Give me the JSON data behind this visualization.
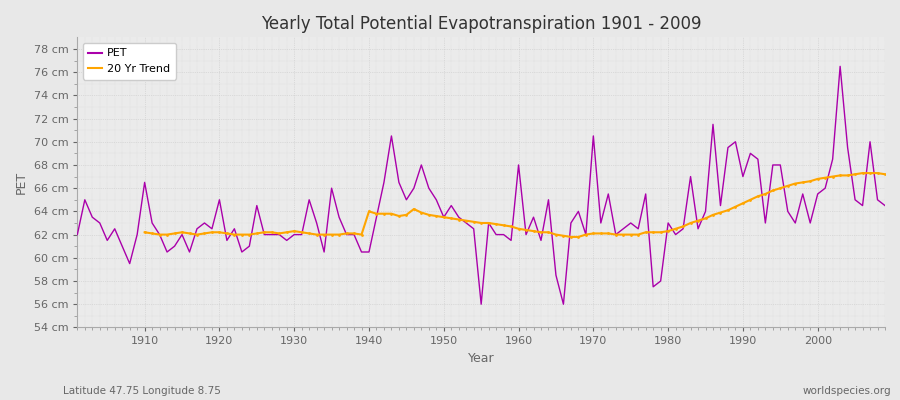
{
  "title": "Yearly Total Potential Evapotranspiration 1901 - 2009",
  "xlabel": "Year",
  "ylabel": "PET",
  "subtitle": "Latitude 47.75 Longitude 8.75",
  "watermark": "worldspecies.org",
  "ylim": [
    54,
    79
  ],
  "yticks": [
    54,
    56,
    58,
    60,
    62,
    64,
    66,
    68,
    70,
    72,
    74,
    76,
    78
  ],
  "pet_color": "#AA00AA",
  "trend_color": "#FFA500",
  "bg_color": "#E8E8E8",
  "plot_bg_color": "#EBEBEB",
  "grid_color": "#CCCCCC",
  "years": [
    1901,
    1902,
    1903,
    1904,
    1905,
    1906,
    1907,
    1908,
    1909,
    1910,
    1911,
    1912,
    1913,
    1914,
    1915,
    1916,
    1917,
    1918,
    1919,
    1920,
    1921,
    1922,
    1923,
    1924,
    1925,
    1926,
    1927,
    1928,
    1929,
    1930,
    1931,
    1932,
    1933,
    1934,
    1935,
    1936,
    1937,
    1938,
    1939,
    1940,
    1941,
    1942,
    1943,
    1944,
    1945,
    1946,
    1947,
    1948,
    1949,
    1950,
    1951,
    1952,
    1953,
    1954,
    1955,
    1956,
    1957,
    1958,
    1959,
    1960,
    1961,
    1962,
    1963,
    1964,
    1965,
    1966,
    1967,
    1968,
    1969,
    1970,
    1971,
    1972,
    1973,
    1974,
    1975,
    1976,
    1977,
    1978,
    1979,
    1980,
    1981,
    1982,
    1983,
    1984,
    1985,
    1986,
    1987,
    1988,
    1989,
    1990,
    1991,
    1992,
    1993,
    1994,
    1995,
    1996,
    1997,
    1998,
    1999,
    2000,
    2001,
    2002,
    2003,
    2004,
    2005,
    2006,
    2007,
    2008,
    2009
  ],
  "pet_values": [
    62.0,
    65.0,
    63.5,
    63.0,
    61.5,
    62.5,
    61.0,
    59.5,
    62.0,
    66.5,
    63.0,
    62.0,
    60.5,
    61.0,
    62.0,
    60.5,
    62.5,
    63.0,
    62.5,
    65.0,
    61.5,
    62.5,
    60.5,
    61.0,
    64.5,
    62.0,
    62.0,
    62.0,
    61.5,
    62.0,
    62.0,
    65.0,
    63.0,
    60.5,
    66.0,
    63.5,
    62.0,
    62.0,
    60.5,
    60.5,
    63.5,
    66.5,
    70.5,
    66.5,
    65.0,
    66.0,
    68.0,
    66.0,
    65.0,
    63.5,
    64.5,
    63.5,
    63.0,
    62.5,
    56.0,
    63.0,
    62.0,
    62.0,
    61.5,
    68.0,
    62.0,
    63.5,
    61.5,
    65.0,
    58.5,
    56.0,
    63.0,
    64.0,
    62.0,
    70.5,
    63.0,
    65.5,
    62.0,
    62.5,
    63.0,
    62.5,
    65.5,
    57.5,
    58.0,
    63.0,
    62.0,
    62.5,
    67.0,
    62.5,
    64.0,
    71.5,
    64.5,
    69.5,
    70.0,
    67.0,
    69.0,
    68.5,
    63.0,
    68.0,
    68.0,
    64.0,
    63.0,
    65.5,
    63.0,
    65.5,
    66.0,
    68.5,
    76.5,
    69.5,
    65.0,
    64.5,
    70.0,
    65.0,
    64.5
  ],
  "trend_years": [
    1910,
    1911,
    1912,
    1913,
    1914,
    1915,
    1916,
    1917,
    1918,
    1919,
    1920,
    1921,
    1922,
    1923,
    1924,
    1925,
    1926,
    1927,
    1928,
    1929,
    1930,
    1931,
    1932,
    1933,
    1934,
    1935,
    1936,
    1937,
    1938,
    1939,
    1940,
    1941,
    1942,
    1943,
    1944,
    1945,
    1946,
    1947,
    1948,
    1949,
    1950,
    1951,
    1952,
    1953,
    1954,
    1955,
    1956,
    1957,
    1958,
    1959,
    1960,
    1961,
    1962,
    1963,
    1964,
    1965,
    1966,
    1967,
    1968,
    1969,
    1970,
    1971,
    1972,
    1973,
    1974,
    1975,
    1976,
    1977,
    1978,
    1979,
    1980,
    1981,
    1982,
    1983,
    1984,
    1985,
    1986,
    1987,
    1988,
    1989,
    1990,
    1991,
    1992,
    1993,
    1994,
    1995,
    1996,
    1997,
    1998,
    1999,
    2000,
    2001,
    2002,
    2003,
    2004,
    2005,
    2006,
    2007,
    2008,
    2009
  ],
  "trend_values": [
    62.2,
    62.1,
    62.0,
    62.0,
    62.1,
    62.2,
    62.1,
    62.0,
    62.1,
    62.2,
    62.2,
    62.1,
    62.0,
    62.0,
    62.0,
    62.1,
    62.2,
    62.2,
    62.1,
    62.2,
    62.3,
    62.2,
    62.1,
    62.0,
    62.0,
    62.0,
    62.0,
    62.1,
    62.1,
    62.0,
    64.0,
    63.8,
    63.8,
    63.8,
    63.6,
    63.7,
    64.2,
    63.9,
    63.7,
    63.6,
    63.5,
    63.4,
    63.3,
    63.2,
    63.1,
    63.0,
    63.0,
    62.9,
    62.8,
    62.7,
    62.5,
    62.4,
    62.3,
    62.2,
    62.2,
    62.0,
    61.9,
    61.8,
    61.8,
    62.0,
    62.1,
    62.1,
    62.1,
    62.0,
    62.0,
    62.0,
    62.0,
    62.2,
    62.2,
    62.2,
    62.3,
    62.5,
    62.7,
    63.0,
    63.2,
    63.4,
    63.7,
    63.9,
    64.1,
    64.4,
    64.7,
    65.0,
    65.3,
    65.5,
    65.8,
    66.0,
    66.2,
    66.4,
    66.5,
    66.6,
    66.8,
    66.9,
    67.0,
    67.1,
    67.1,
    67.2,
    67.3,
    67.3,
    67.3,
    67.2
  ]
}
